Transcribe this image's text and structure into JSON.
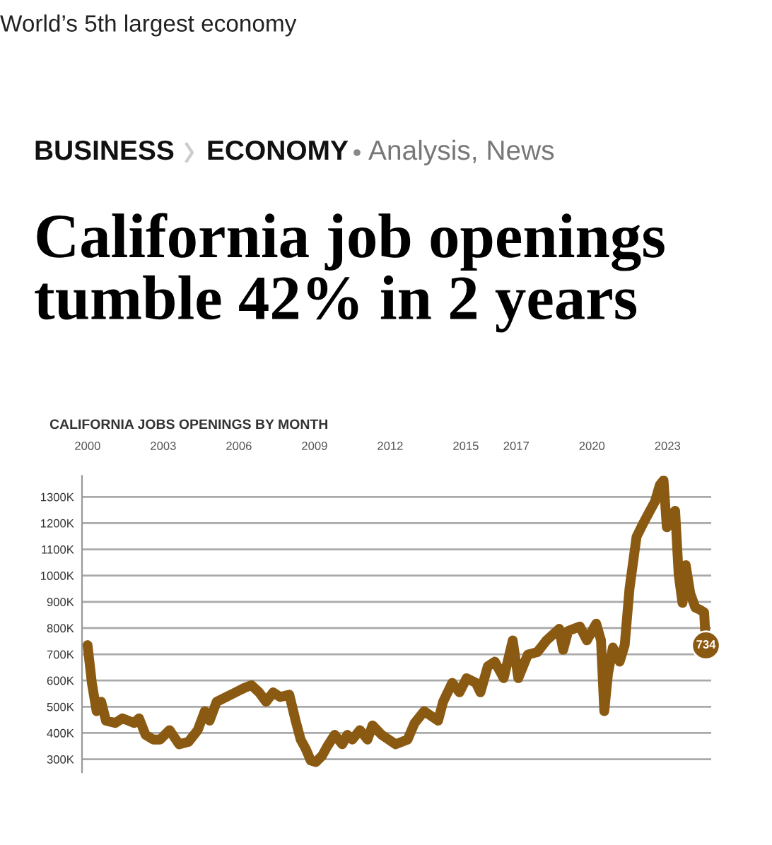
{
  "chart_data": {
    "type": "line",
    "title": "California job openings tumble 42% in 2 years",
    "subtitle": "CALIFORNIA JOBS OPENINGS BY MONTH",
    "annotations": [
      "World’s 5th largest economy",
      "BUSINESS",
      "ECONOMY",
      "Analysis, News",
      {
        "text": "734",
        "x": 2024.52,
        "y": 734
      }
    ],
    "series": [
      {
        "color": "#8b5a12",
        "x": [
          2000.0,
          2000.17,
          2000.36,
          2000.54,
          2000.73,
          2001.1,
          2001.38,
          2001.85,
          2002.04,
          2002.3,
          2002.6,
          2002.88,
          2003.25,
          2003.63,
          2004.0,
          2004.37,
          2004.65,
          2004.84,
          2005.12,
          2005.5,
          2005.87,
          2006.24,
          2006.5,
          2006.8,
          2007.08,
          2007.36,
          2007.64,
          2008.0,
          2008.25,
          2008.45,
          2008.65,
          2008.85,
          2009.05,
          2009.3,
          2009.5,
          2009.8,
          2010.1,
          2010.3,
          2010.5,
          2010.8,
          2011.1,
          2011.3,
          2011.66,
          2012.22,
          2012.69,
          2012.97,
          2013.35,
          2013.9,
          2014.1,
          2014.46,
          2014.75,
          2015.03,
          2015.4,
          2015.58,
          2015.87,
          2016.15,
          2016.5,
          2016.86,
          2017.08,
          2017.46,
          2017.83,
          2018.2,
          2018.7,
          2018.86,
          2019.06,
          2019.52,
          2019.8,
          2020.17,
          2020.36,
          2020.49,
          2020.64,
          2020.83,
          2021.1,
          2021.3,
          2021.49,
          2021.77,
          2022.05,
          2022.3,
          2022.5,
          2022.69,
          2022.84,
          2022.97,
          2023.16,
          2023.3,
          2023.44,
          2023.59,
          2023.72,
          2023.9,
          2024.1,
          2024.3,
          2024.45,
          2024.52
        ],
        "values": [
          735,
          591,
          483,
          519,
          447,
          438,
          456,
          438,
          456,
          393,
          375,
          375,
          411,
          357,
          366,
          411,
          483,
          447,
          519,
          537,
          555,
          573,
          582,
          555,
          519,
          555,
          537,
          546,
          447,
          375,
          340,
          295,
          289,
          313,
          348,
          393,
          357,
          393,
          375,
          411,
          375,
          429,
          393,
          357,
          375,
          438,
          483,
          447,
          519,
          591,
          555,
          609,
          591,
          555,
          654,
          672,
          609,
          753,
          609,
          699,
          708,
          753,
          797,
          717,
          789,
          806,
          753,
          817,
          753,
          483,
          627,
          726,
          672,
          735,
          950,
          1148,
          1202,
          1247,
          1282,
          1345,
          1363,
          1184,
          1229,
          1247,
          1004,
          896,
          1040,
          932,
          878,
          869,
          860,
          734
        ]
      }
    ],
    "xlim": [
      1999.78,
      2024.73
    ],
    "xticks": [
      2000,
      2003,
      2006,
      2009,
      2012,
      2015,
      2017,
      2020,
      2023
    ],
    "ylim": [
      250,
      1380
    ],
    "yticks": [
      {
        "value": 300,
        "label": "300K"
      },
      {
        "value": 400,
        "label": "400K"
      },
      {
        "value": 500,
        "label": "500K"
      },
      {
        "value": 600,
        "label": "600K"
      },
      {
        "value": 700,
        "label": "700K"
      },
      {
        "value": 800,
        "label": "800K"
      },
      {
        "value": 900,
        "label": "900K"
      },
      {
        "value": 1000,
        "label": "1000K"
      },
      {
        "value": 1100,
        "label": "1100K"
      },
      {
        "value": 1200,
        "label": "1200K"
      },
      {
        "value": 1300,
        "label": "1300K"
      }
    ],
    "grid": "y",
    "marker": "none",
    "line_style": "solid"
  }
}
